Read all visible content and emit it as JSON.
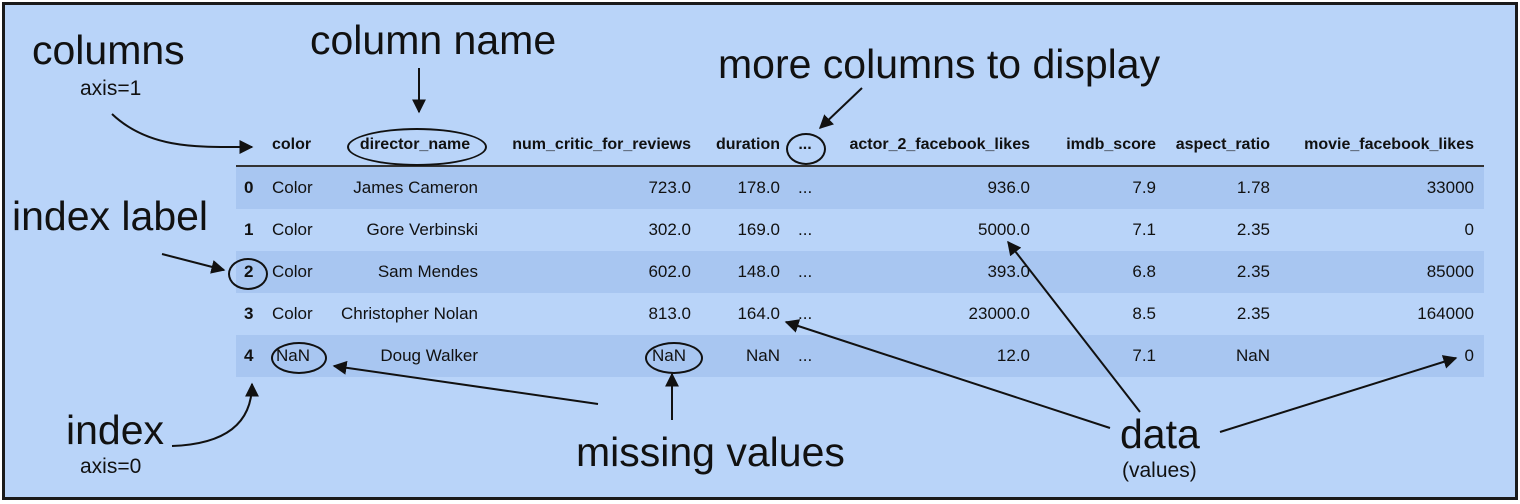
{
  "annotations": {
    "columns": "columns",
    "columns_axis": "axis=1",
    "column_name": "column name",
    "more_columns": "more columns to display",
    "index_label": "index label",
    "index": "index",
    "index_axis": "axis=0",
    "missing_values": "missing values",
    "data": "data",
    "data_sub": "(values)"
  },
  "table": {
    "columns": [
      "color",
      "director_name",
      "num_critic_for_reviews",
      "duration",
      "...",
      "actor_2_facebook_likes",
      "imdb_score",
      "aspect_ratio",
      "movie_facebook_likes"
    ],
    "rows": [
      {
        "index": "0",
        "values": [
          "Color",
          "James Cameron",
          "723.0",
          "178.0",
          "...",
          "936.0",
          "7.9",
          "1.78",
          "33000"
        ]
      },
      {
        "index": "1",
        "values": [
          "Color",
          "Gore Verbinski",
          "302.0",
          "169.0",
          "...",
          "5000.0",
          "7.1",
          "2.35",
          "0"
        ]
      },
      {
        "index": "2",
        "values": [
          "Color",
          "Sam Mendes",
          "602.0",
          "148.0",
          "...",
          "393.0",
          "6.8",
          "2.35",
          "85000"
        ]
      },
      {
        "index": "3",
        "values": [
          "Color",
          "Christopher Nolan",
          "813.0",
          "164.0",
          "...",
          "23000.0",
          "8.5",
          "2.35",
          "164000"
        ]
      },
      {
        "index": "4",
        "values": [
          "NaN",
          "Doug Walker",
          "NaN",
          "NaN",
          "...",
          "12.0",
          "7.1",
          "NaN",
          "0"
        ]
      }
    ]
  }
}
